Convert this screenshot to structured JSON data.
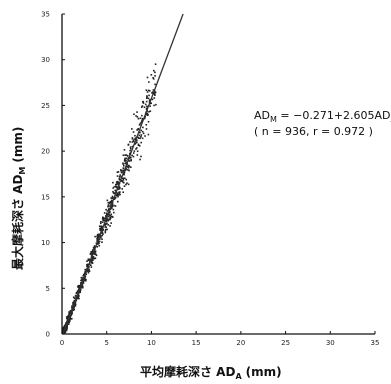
{
  "chart_data": {
    "type": "scatter",
    "xlabel": {
      "main": "平均摩耗深さ AD",
      "sub": "A",
      "unit": "(mm)"
    },
    "ylabel": {
      "main": "最大摩耗深さ AD",
      "sub": "M",
      "unit": "(mm)"
    },
    "xlim": [
      0,
      35
    ],
    "ylim": [
      0,
      35
    ],
    "xticks": [
      "0",
      "5",
      "10",
      "15",
      "20",
      "25",
      "30",
      "35"
    ],
    "yticks": [
      "0",
      "5",
      "10",
      "15",
      "20",
      "25",
      "30",
      "35"
    ],
    "grid": false,
    "regression": {
      "intercept": -0.271,
      "slope": 2.605,
      "equation": {
        "lhs": "AD",
        "lhs_sub": "M",
        "rhs": " = −0.271+2.605AD",
        "rhs_sub": "A"
      },
      "stats": "( n = 936, r = 0.972 )"
    },
    "scatter_envelope": {
      "n": 936,
      "x_range": [
        0.1,
        10.5
      ],
      "spread_fraction": 0.14
    }
  }
}
